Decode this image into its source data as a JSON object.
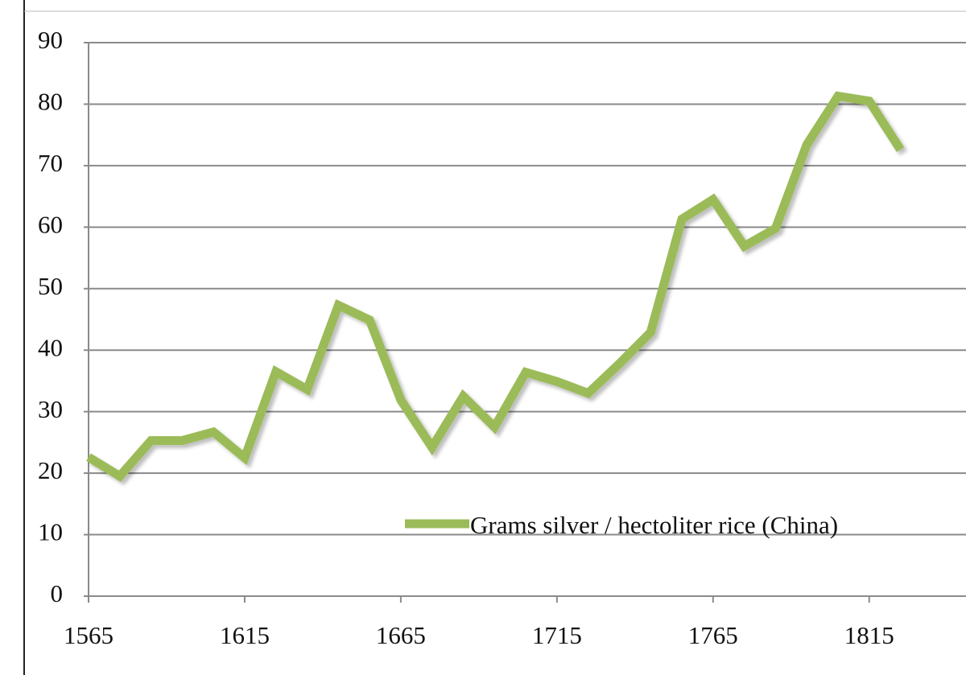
{
  "chart_data": {
    "type": "line",
    "x": [
      1565,
      1575,
      1585,
      1595,
      1605,
      1615,
      1625,
      1635,
      1645,
      1655,
      1665,
      1675,
      1685,
      1695,
      1705,
      1715,
      1725,
      1735,
      1745,
      1755,
      1765,
      1775,
      1785,
      1795,
      1805,
      1815,
      1825
    ],
    "series": [
      {
        "name": "Grams silver / hectoliter rice (China)",
        "color": "#9bbb59",
        "values": [
          22.6,
          19.5,
          25.3,
          25.3,
          26.7,
          22.5,
          36.5,
          33.6,
          47.3,
          44.9,
          31.9,
          24.2,
          32.5,
          27.5,
          36.4,
          34.9,
          33,
          37.8,
          42.9,
          61.3,
          64.5,
          56.9,
          59.8,
          73.4,
          81.3,
          80.5,
          72.6
        ]
      }
    ],
    "xlim": [
      1565,
      1846
    ],
    "xticks": [
      1565,
      1615,
      1665,
      1715,
      1765,
      1815
    ],
    "ylim": [
      0,
      90
    ],
    "yticks": [
      0,
      10,
      20,
      30,
      40,
      50,
      60,
      70,
      80,
      90
    ],
    "grid": true
  }
}
